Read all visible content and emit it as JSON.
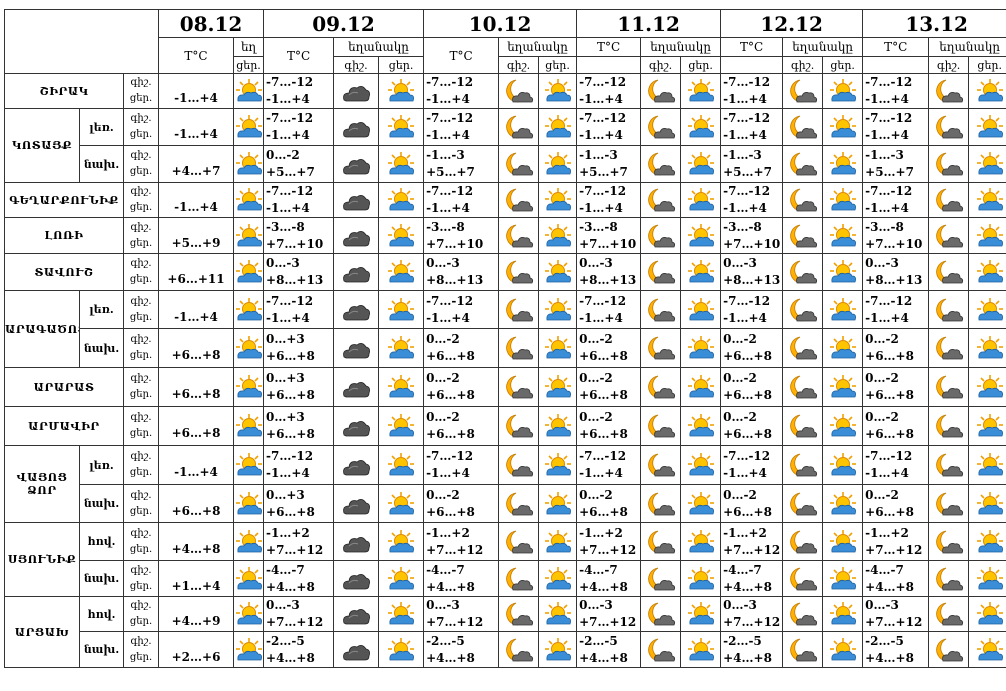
{
  "header": {
    "dates": [
      "08.12",
      "09.12",
      "10.12",
      "11.12",
      "12.12",
      "13.12"
    ],
    "temp_label": "T°C",
    "weather_label": "եղանակը",
    "weather_label_cut": "եղ",
    "night_label": "գիշ.",
    "day_label": "ցեր."
  },
  "row_labels": {
    "night": "գիշ.",
    "day": "ցեր."
  },
  "rows": [
    {
      "region": "ՇԻՐԱԿ",
      "sub": "",
      "t08": "-1…+4",
      "n": "-7…-12",
      "d": "-1…+4",
      "icons": [
        "sun",
        "cloud",
        "sun",
        "moon",
        "sun",
        "moon",
        "sun",
        "moon",
        "sun",
        "moon",
        "sun"
      ]
    },
    {
      "region": "ԿՈՏԱՅՔ",
      "sub": "լեռ.",
      "t08": "-1…+4",
      "n": "-7…-12",
      "d": "-1…+4",
      "icons": [
        "sun",
        "cloud",
        "sun",
        "moon",
        "sun",
        "moon",
        "sun",
        "moon",
        "sun",
        "moon",
        "sun"
      ]
    },
    {
      "region": "",
      "sub": "նախ.",
      "t08": "+4…+7",
      "n": "0…-2",
      "d": "+5…+7",
      "n2": "-1…-3",
      "icons": [
        "sun",
        "cloud",
        "sun",
        "moon",
        "sun",
        "moon",
        "sun",
        "moon",
        "sun",
        "moon",
        "sun"
      ]
    },
    {
      "region": "ԳԵՂԱՐՔՈՒՆԻՔ",
      "sub": "",
      "t08": "-1…+4",
      "n": "-7…-12",
      "d": "-1…+4",
      "icons": [
        "sun",
        "cloud",
        "sun",
        "moon",
        "sun",
        "moon",
        "sun",
        "moon",
        "sun",
        "moon",
        "sun"
      ]
    },
    {
      "region": "ԼՈՌԻ",
      "sub": "",
      "t08": "+5…+9",
      "n": "-3…-8",
      "d": "+7…+10",
      "icons": [
        "sun",
        "cloud",
        "sun",
        "moon",
        "sun",
        "moon",
        "sun",
        "moon",
        "sun",
        "moon",
        "sun"
      ]
    },
    {
      "region": "ՏԱՎՈՒՇ",
      "sub": "",
      "t08": "+6…+11",
      "n": "0…-3",
      "d": "+8…+13",
      "icons": [
        "sun",
        "cloud",
        "sun",
        "moon",
        "sun",
        "moon",
        "sun",
        "moon",
        "sun",
        "moon",
        "sun"
      ]
    },
    {
      "region": "ԱՐԱԳԱԾՈՏՆ",
      "sub": "լեռ.",
      "t08": "-1…+4",
      "n": "-7…-12",
      "d": "-1…+4",
      "icons": [
        "sun",
        "cloud",
        "sun",
        "moon",
        "sun",
        "moon",
        "sun",
        "moon",
        "sun",
        "moon",
        "sun"
      ]
    },
    {
      "region": "",
      "sub": "նախ.",
      "t08": "+6…+8",
      "n": "0…+3",
      "d": "+6…+8",
      "n2": "0…-2",
      "icons": [
        "sun",
        "cloud",
        "sun",
        "moon",
        "sun",
        "moon",
        "sun",
        "moon",
        "sun",
        "moon",
        "sun"
      ]
    },
    {
      "region": "ԱՐԱՐԱՏ",
      "sub": "",
      "t08": "+6…+8",
      "n": "0…+3",
      "d": "+6…+8",
      "n2": "0…-2",
      "icons": [
        "sun",
        "cloud",
        "sun",
        "moon",
        "sun",
        "moon",
        "sun",
        "moon",
        "sun",
        "moon",
        "sun"
      ]
    },
    {
      "region": "ԱՐՄԱՎԻՐ",
      "sub": "",
      "t08": "+6…+8",
      "n": "0…+3",
      "d": "+6…+8",
      "n2": "0…-2",
      "icons": [
        "sun",
        "cloud",
        "sun",
        "moon",
        "sun",
        "moon",
        "sun",
        "moon",
        "sun",
        "moon",
        "sun"
      ]
    },
    {
      "region": "ՎԱՅՈՑ ՁՈՐ",
      "sub": "լեռ.",
      "t08": "-1…+4",
      "n": "-7…-12",
      "d": "-1…+4",
      "icons": [
        "sun",
        "cloud",
        "sun",
        "moon",
        "sun",
        "moon",
        "sun",
        "moon",
        "sun",
        "moon",
        "sun"
      ]
    },
    {
      "region": "",
      "sub": "նախ.",
      "t08": "+6…+8",
      "n": "0…+3",
      "d": "+6…+8",
      "n2": "0…-2",
      "icons": [
        "sun",
        "cloud",
        "sun",
        "moon",
        "sun",
        "moon",
        "sun",
        "moon",
        "sun",
        "moon",
        "sun"
      ]
    },
    {
      "region": "ՍՅՈՒՆԻՔ",
      "sub": "հով.",
      "t08": "+4…+8",
      "n": "-1…+2",
      "d": "+7…+12",
      "icons": [
        "sun",
        "cloud",
        "sun",
        "moon",
        "sun",
        "moon",
        "sun",
        "moon",
        "sun",
        "moon",
        "sun"
      ]
    },
    {
      "region": "",
      "sub": "նախ.",
      "t08": "+1…+4",
      "n": "-4…-7",
      "d": "+4…+8",
      "icons": [
        "sun",
        "cloud",
        "sun",
        "moon",
        "sun",
        "moon",
        "sun",
        "moon",
        "sun",
        "moon",
        "sun"
      ]
    },
    {
      "region": "ԱՐՑԱԽ",
      "sub": "հով.",
      "t08": "+4…+9",
      "n": "0…-3",
      "d": "+7…+12",
      "icons": [
        "sun",
        "cloud",
        "sun",
        "moon",
        "sun",
        "moon",
        "sun",
        "moon",
        "sun",
        "moon",
        "sun"
      ]
    },
    {
      "region": "",
      "sub": "նախ.",
      "t08": "+2…+6",
      "n": "-2…-5",
      "d": "+4…+8",
      "icons": [
        "sun",
        "cloud",
        "sun",
        "moon",
        "sun",
        "moon",
        "sun",
        "moon",
        "sun",
        "moon",
        "sun"
      ]
    }
  ]
}
